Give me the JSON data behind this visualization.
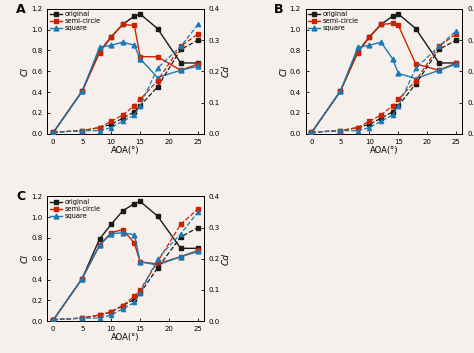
{
  "aoa": [
    0,
    5,
    8,
    10,
    12,
    14,
    15,
    18,
    22,
    25
  ],
  "A": {
    "cl_original": [
      0.01,
      0.41,
      0.79,
      0.93,
      1.05,
      1.13,
      1.15,
      1.01,
      0.68,
      0.68
    ],
    "cl_semicircle": [
      0.01,
      0.41,
      0.78,
      0.93,
      1.05,
      1.04,
      0.74,
      0.74,
      0.61,
      0.67
    ],
    "cl_square": [
      0.01,
      0.41,
      0.83,
      0.85,
      0.88,
      0.85,
      0.72,
      0.54,
      0.61,
      0.65
    ],
    "cd_original": [
      0.005,
      0.01,
      0.02,
      0.03,
      0.05,
      0.07,
      0.09,
      0.15,
      0.27,
      0.3
    ],
    "cd_semicircle": [
      0.005,
      0.01,
      0.02,
      0.04,
      0.06,
      0.09,
      0.11,
      0.17,
      0.28,
      0.32
    ],
    "cd_square": [
      0.005,
      0.01,
      0.01,
      0.02,
      0.04,
      0.06,
      0.09,
      0.21,
      0.28,
      0.35
    ]
  },
  "B": {
    "cl_original": [
      0.01,
      0.41,
      0.79,
      0.93,
      1.05,
      1.13,
      1.15,
      1.01,
      0.68,
      0.68
    ],
    "cl_semicircle": [
      0.01,
      0.41,
      0.78,
      0.93,
      1.05,
      1.06,
      1.04,
      0.67,
      0.61,
      0.68
    ],
    "cl_square": [
      0.01,
      0.41,
      0.83,
      0.85,
      0.88,
      0.72,
      0.58,
      0.53,
      0.61,
      0.67
    ],
    "cd_original": [
      0.005,
      0.01,
      0.02,
      0.03,
      0.05,
      0.07,
      0.09,
      0.16,
      0.27,
      0.3
    ],
    "cd_semicircle": [
      0.005,
      0.01,
      0.02,
      0.04,
      0.06,
      0.09,
      0.11,
      0.17,
      0.28,
      0.32
    ],
    "cd_square": [
      0.005,
      0.01,
      0.01,
      0.02,
      0.04,
      0.06,
      0.09,
      0.21,
      0.28,
      0.33
    ]
  },
  "C": {
    "cl_original": [
      0.01,
      0.41,
      0.79,
      0.93,
      1.06,
      1.13,
      1.15,
      1.01,
      0.7,
      0.7
    ],
    "cl_semicircle": [
      0.01,
      0.41,
      0.73,
      0.85,
      0.88,
      0.75,
      0.57,
      0.55,
      0.62,
      0.68
    ],
    "cl_square": [
      0.01,
      0.41,
      0.73,
      0.84,
      0.85,
      0.83,
      0.57,
      0.54,
      0.62,
      0.67
    ],
    "cd_original": [
      0.005,
      0.01,
      0.02,
      0.03,
      0.05,
      0.07,
      0.09,
      0.17,
      0.27,
      0.3
    ],
    "cd_semicircle": [
      0.005,
      0.01,
      0.02,
      0.03,
      0.05,
      0.08,
      0.1,
      0.19,
      0.31,
      0.36
    ],
    "cd_square": [
      0.005,
      0.01,
      0.01,
      0.02,
      0.04,
      0.06,
      0.09,
      0.2,
      0.28,
      0.35
    ]
  },
  "colors": {
    "original": "#1a1a1a",
    "semicircle": "#cc2200",
    "square": "#1a7ab5"
  },
  "bg_color": "#f5f0eb",
  "ylim_cl": [
    0.0,
    1.2
  ],
  "ylim_cd": [
    0.0,
    0.4
  ],
  "xlabel": "AOA(°)",
  "ylabel_l": "Cl",
  "ylabel_r": "Cd",
  "xticks": [
    0,
    5,
    10,
    15,
    20,
    25
  ],
  "yticks_cl": [
    0.0,
    0.2,
    0.4,
    0.6,
    0.8,
    1.0,
    1.2
  ],
  "yticks_cd": [
    0.0,
    0.1,
    0.2,
    0.3,
    0.4
  ]
}
